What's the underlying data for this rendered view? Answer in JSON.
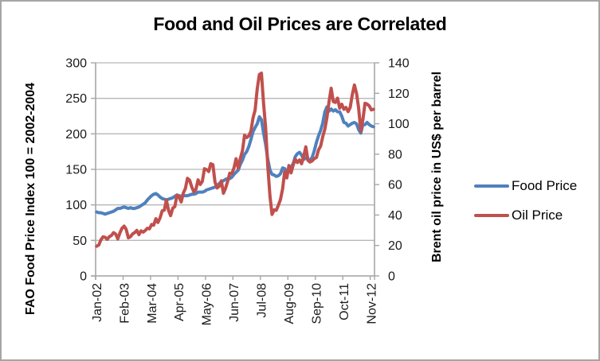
{
  "chart_data": {
    "type": "line",
    "title": "Food and Oil Prices are Correlated",
    "ylabel_left": "FAO Food Price Index 100 = 2002-2004",
    "ylabel_right": "Brent oil price in US$ per barrel",
    "grid": "horizontal",
    "legend_position": "right",
    "y_left_axis": {
      "min": 0,
      "max": 300,
      "ticks": [
        0,
        50,
        100,
        150,
        200,
        250,
        300
      ]
    },
    "y_right_axis": {
      "min": 0,
      "max": 140,
      "ticks": [
        0,
        20,
        40,
        60,
        80,
        100,
        120,
        140
      ]
    },
    "x_ticklabels": [
      "Jan-02",
      "Feb-03",
      "Mar-04",
      "Apr-05",
      "May-06",
      "Jun-07",
      "Jul-08",
      "Aug-09",
      "Sep-10",
      "Oct-11",
      "Nov-12"
    ],
    "x_tick_month_indices": [
      0,
      13,
      26,
      39,
      52,
      65,
      78,
      91,
      104,
      117,
      130
    ],
    "axis_color": "#a6a6a6",
    "gridline_color": "#b7b7b7",
    "series": [
      {
        "name": "Food Price",
        "axis": "left",
        "color": "#4f81bd",
        "values": [
          90,
          89,
          89,
          88,
          87,
          88,
          89,
          90,
          91,
          93,
          95,
          95,
          96,
          97,
          96,
          95,
          96,
          95,
          95,
          96,
          97,
          99,
          101,
          103,
          107,
          110,
          113,
          115,
          116,
          114,
          111,
          109,
          108,
          107,
          108,
          109,
          110,
          112,
          114,
          113,
          112,
          113,
          113,
          113,
          114,
          115,
          115,
          116,
          118,
          118,
          118,
          119,
          121,
          122,
          123,
          124,
          125,
          127,
          130,
          133,
          134,
          136,
          137,
          137,
          139,
          143,
          146,
          149,
          157,
          163,
          171,
          175,
          182,
          192,
          203,
          209,
          214,
          224,
          220,
          201,
          185,
          164,
          149,
          143,
          142,
          140,
          141,
          144,
          152,
          151,
          147,
          152,
          153,
          158,
          168,
          172,
          174,
          170,
          164,
          166,
          164,
          163,
          167,
          176,
          188,
          197,
          205,
          215,
          231,
          238,
          232,
          235,
          232,
          234,
          231,
          231,
          225,
          216,
          215,
          211,
          213,
          215,
          216,
          214,
          206,
          201,
          213,
          213,
          216,
          213,
          211,
          210
        ]
      },
      {
        "name": "Oil Price",
        "axis": "right",
        "color": "#c0504d",
        "values": [
          19.5,
          20.3,
          23.7,
          25.7,
          25.4,
          24.1,
          25.8,
          26.6,
          28.4,
          27.5,
          24.3,
          28.3,
          31.3,
          32.7,
          30.5,
          25.0,
          25.8,
          27.6,
          28.5,
          29.9,
          27.1,
          29.6,
          28.8,
          29.9,
          31.3,
          30.9,
          33.8,
          33.4,
          37.6,
          35.1,
          38.2,
          42.7,
          43.2,
          49.8,
          43.1,
          39.6,
          44.5,
          45.5,
          53.1,
          51.9,
          48.6,
          54.4,
          57.5,
          64.1,
          62.9,
          58.5,
          55.2,
          56.9,
          63.1,
          60.1,
          62.1,
          70.4,
          69.9,
          68.6,
          73.7,
          73.1,
          61.7,
          57.8,
          58.9,
          62.5,
          54.3,
          57.6,
          62.1,
          67.5,
          67.2,
          71.1,
          77.0,
          70.8,
          77.2,
          82.3,
          92.4,
          90.9,
          92.0,
          95.0,
          103.7,
          109.1,
          122.8,
          132.3,
          133.2,
          113.2,
          97.1,
          71.9,
          52.5,
          40.4,
          43.4,
          43.1,
          46.5,
          50.2,
          57.3,
          68.6,
          64.4,
          72.5,
          67.7,
          72.8,
          76.7,
          74.5,
          76.2,
          73.7,
          78.8,
          84.8,
          75.9,
          74.8,
          75.6,
          77.1,
          77.8,
          82.7,
          85.3,
          91.4,
          96.5,
          104.0,
          114.6,
          123.3,
          114.5,
          114.0,
          116.8,
          110.2,
          112.8,
          109.5,
          110.7,
          107.9,
          110.7,
          119.3,
          125.4,
          119.8,
          110.3,
          95.2,
          102.6,
          113.4,
          112.9,
          111.7,
          109.1,
          109.5
        ]
      }
    ]
  }
}
